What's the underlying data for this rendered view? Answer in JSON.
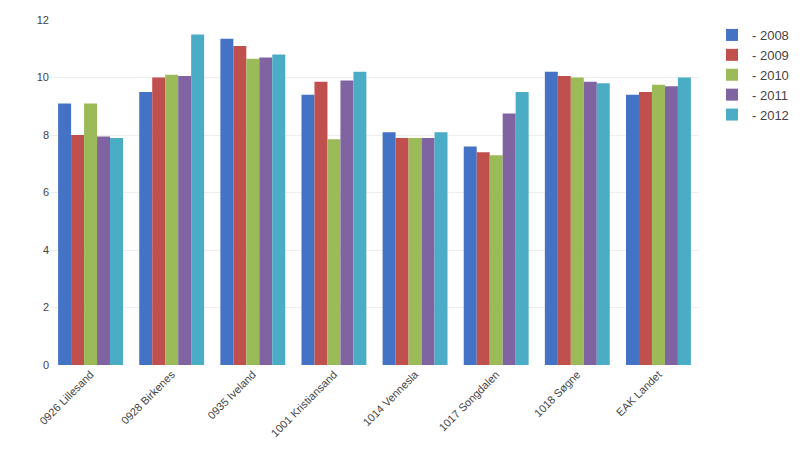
{
  "chart_data": {
    "type": "bar",
    "categories": [
      "0926 Lillesand",
      "0928 Birkenes",
      "0935 Iveland",
      "1001 Kristiansand",
      "1014 Vennesla",
      "1017 Songdalen",
      "1018 Søgne",
      "EAK Landet"
    ],
    "series": [
      {
        "name": "- 2008",
        "color": "#4472C4",
        "values": [
          9.1,
          9.5,
          11.35,
          9.4,
          8.1,
          7.6,
          10.2,
          9.4
        ]
      },
      {
        "name": "- 2009",
        "color": "#C0504D",
        "values": [
          8.0,
          10.0,
          11.1,
          9.85,
          7.9,
          7.4,
          10.05,
          9.5
        ]
      },
      {
        "name": "- 2010",
        "color": "#9BBB59",
        "values": [
          9.1,
          10.1,
          10.65,
          7.85,
          7.9,
          7.3,
          10.0,
          9.75
        ]
      },
      {
        "name": "- 2011",
        "color": "#8064A2",
        "values": [
          7.95,
          10.05,
          10.7,
          9.9,
          7.9,
          8.75,
          9.85,
          9.7
        ]
      },
      {
        "name": "- 2012",
        "color": "#4BACC6",
        "values": [
          7.9,
          11.5,
          10.8,
          10.2,
          8.1,
          9.5,
          9.8,
          10.0
        ]
      }
    ],
    "ylim": [
      0,
      12
    ],
    "yticks": [
      0,
      2,
      4,
      6,
      8,
      10,
      12
    ],
    "grid": true,
    "legend": "right"
  }
}
